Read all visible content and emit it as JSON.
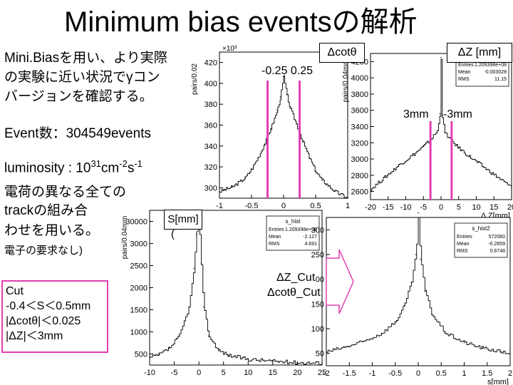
{
  "title": "Minimum bias eventsの解析",
  "left_text": {
    "line1": "Mini.Biasを用い、より実際",
    "line2": "の実験に近い状況でγコン",
    "line3": "バージョンを確認する。",
    "events": "Event数：304549events",
    "lumi_base": "luminosity : 10",
    "lumi_exp1": "31",
    "lumi_mid": "cm",
    "lumi_exp2": "-2",
    "lumi_s": "s",
    "lumi_exp3": "-1",
    "tracks1": "電荷の異なる全ての",
    "tracks2": "trackの組み合",
    "tracks3": "わせを用いる。",
    "tracks4": "電子の要求なし)"
  },
  "cut_box": {
    "title": "Cut",
    "c1": "-0.4＜S＜0.5mm",
    "c2": "|Δcotθ|＜0.025",
    "c3": "|ΔZ|＜3mm"
  },
  "annotations": {
    "dcot_label": "Δcotθ",
    "dcot_range": "-0.25  0.25",
    "dz_label": "ΔZ  [mm]",
    "dz_range_left": "3mm",
    "dz_range_right": "-3mm",
    "s_label": "S[mm]",
    "s_paren": "(",
    "cut_label1": "ΔZ_Cut",
    "cut_label2": "Δcotθ_Cut"
  },
  "chart_data": [
    {
      "type": "line",
      "name": "dcot",
      "ylabel": "pairs/0.02",
      "y_multiplier": "×10³",
      "xlim": [
        -1,
        1
      ],
      "ylim": [
        300,
        430
      ],
      "xticks": [
        "-1",
        "-0.5",
        "0",
        "0.5",
        "1"
      ],
      "yticks": [
        "300",
        "320",
        "340",
        "360",
        "380",
        "400",
        "420"
      ],
      "x": [
        -1.0,
        -0.8,
        -0.6,
        -0.5,
        -0.4,
        -0.3,
        -0.2,
        -0.1,
        -0.05,
        0.0,
        0.05,
        0.1,
        0.2,
        0.3,
        0.4,
        0.5,
        0.6,
        0.8,
        1.0
      ],
      "y": [
        306,
        310,
        318,
        326,
        336,
        348,
        362,
        378,
        390,
        408,
        392,
        380,
        366,
        350,
        336,
        324,
        316,
        306,
        300
      ]
    },
    {
      "type": "line",
      "name": "dz",
      "ylabel": "pairs/0.04mm",
      "xlabel": "Δ Z[mm]",
      "xlim": [
        -20,
        20
      ],
      "ylim": [
        2600,
        4300
      ],
      "xticks": [
        "-20",
        "-15",
        "-10",
        "-5",
        "0",
        "5",
        "10",
        "15",
        "20"
      ],
      "yticks": [
        "2600",
        "2800",
        "3000",
        "3200",
        "3400",
        "3600",
        "3800",
        "4000",
        "4200"
      ],
      "stats": {
        "entries": "1.209398e+08",
        "mean": "-0.003028",
        "rms": "11.15"
      },
      "x": [
        -20,
        -16,
        -12,
        -8,
        -5,
        -3,
        -1,
        -0.3,
        0,
        0.3,
        1,
        3,
        5,
        8,
        12,
        16,
        20
      ],
      "y": [
        2720,
        2860,
        3000,
        3120,
        3220,
        3300,
        3400,
        3600,
        4250,
        3580,
        3380,
        3280,
        3200,
        3100,
        2980,
        2860,
        2740
      ]
    },
    {
      "type": "line",
      "name": "s_hist",
      "ylabel": "pairs/0.04mm",
      "xlabel": "",
      "xlim": [
        -10,
        25
      ],
      "ylim": [
        0,
        32000
      ],
      "xticks": [
        "-10",
        "-5",
        "0",
        "5",
        "10",
        "15",
        "20",
        "25"
      ],
      "yticks": [
        "500",
        "1000",
        "1500",
        "2000",
        "2500",
        "3000",
        "30000"
      ],
      "stats_title": "s_hist",
      "stats": {
        "entries": "1.209398e+08",
        "mean": "-2.127",
        "rms": "4.691"
      },
      "x": [
        -10,
        -8,
        -6,
        -4,
        -2,
        -1,
        -0.5,
        0,
        0.5,
        1,
        2,
        4,
        6,
        10,
        15,
        20,
        25
      ],
      "y": [
        1500,
        2200,
        3500,
        6000,
        12000,
        20000,
        27000,
        30000,
        21000,
        12000,
        6000,
        3000,
        2000,
        1200,
        800,
        500,
        400
      ]
    },
    {
      "type": "line",
      "name": "s_hist2",
      "xlabel": "s[mm]",
      "xlim": [
        -2,
        2
      ],
      "ylim": [
        0,
        320
      ],
      "xticks": [
        "-2",
        "-1.5",
        "-1",
        "-0.5",
        "0",
        "0.5",
        "1",
        "1.5",
        "2"
      ],
      "yticks": [
        "50",
        "100",
        "150",
        "200",
        "250",
        "300"
      ],
      "stats_title": "s_hist2",
      "stats": {
        "entries": "572060",
        "mean": "-0.2859",
        "rms": "0.6748"
      },
      "x": [
        -2,
        -1.6,
        -1.2,
        -0.8,
        -0.5,
        -0.3,
        -0.15,
        -0.05,
        0,
        0.05,
        0.15,
        0.3,
        0.6,
        1.0,
        1.4,
        1.8,
        2
      ],
      "y": [
        30,
        40,
        52,
        70,
        95,
        130,
        180,
        240,
        330,
        230,
        160,
        110,
        70,
        50,
        38,
        30,
        26
      ]
    }
  ],
  "stats_labels": {
    "entries": "Entries",
    "mean": "Mean",
    "rms": "RMS"
  },
  "colors": {
    "accent": "#e040b0",
    "arrow": "#e040b0"
  }
}
